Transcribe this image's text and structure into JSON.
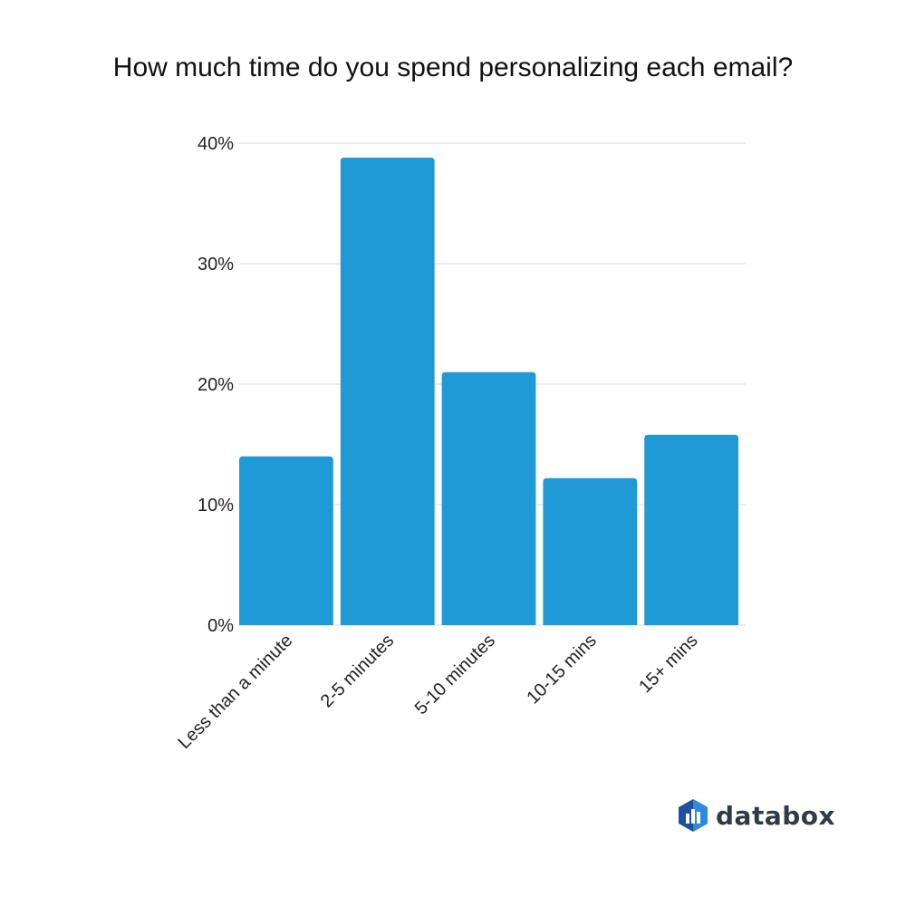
{
  "chart_data": {
    "type": "bar",
    "title": "How much time do you spend personalizing each email?",
    "categories": [
      "Less than a minute",
      "2-5 minutes",
      "5-10 minutes",
      "10-15 mins",
      "15+ mins"
    ],
    "values": [
      14,
      38.8,
      21,
      12.2,
      15.8
    ],
    "ylim": [
      0,
      40
    ],
    "yticks": [
      0,
      10,
      20,
      30,
      40
    ],
    "ytick_labels": [
      "0%",
      "10%",
      "20%",
      "30%",
      "40%"
    ],
    "xlabel": "",
    "ylabel": "",
    "grid": true,
    "colors": {
      "bar": "#1f9ad6",
      "grid": "#d9d9d9",
      "axis_text": "#222222"
    }
  },
  "brand": {
    "name": "databox",
    "icon": "databox-logo-icon",
    "colors": {
      "logo_dark": "#1f4fa0",
      "logo_light": "#2a8be0",
      "text": "#2f3b45"
    }
  }
}
